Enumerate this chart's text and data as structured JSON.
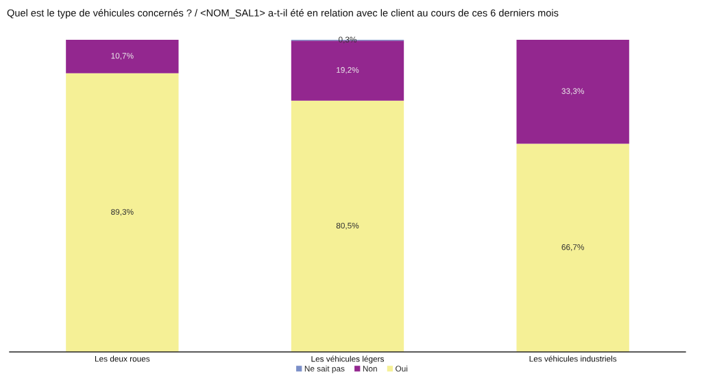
{
  "chart_data": {
    "type": "bar",
    "title": "Quel est le type de véhicules concernés ? / <NOM_SAL1> a-t-il été en relation avec le client au cours de ces 6 derniers mois",
    "categories": [
      "Les deux roues",
      "Les véhicules légers",
      "Les véhicules industriels"
    ],
    "stacked": true,
    "ylim": [
      0,
      100
    ],
    "tick_labels": "x",
    "legend": "bottom",
    "series": [
      {
        "name": "Oui",
        "color": "#f5f096",
        "values": [
          89.3,
          80.5,
          66.7
        ],
        "value_labels": [
          "89,3%",
          "80,5%",
          "66,7%"
        ]
      },
      {
        "name": "Non",
        "color": "#93278f",
        "values": [
          10.7,
          19.2,
          33.3
        ],
        "value_labels": [
          "10,7%",
          "19,2%",
          "33,3%"
        ]
      },
      {
        "name": "Ne sait pas",
        "color": "#7b8fc8",
        "values": [
          null,
          0.3,
          null
        ],
        "value_labels": [
          null,
          "0,3%",
          null
        ]
      }
    ]
  }
}
